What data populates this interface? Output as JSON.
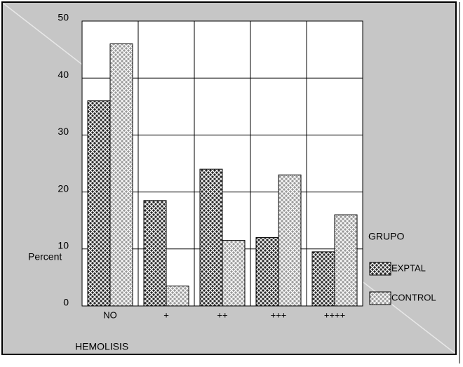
{
  "chart_data": {
    "type": "bar",
    "categories": [
      "NO",
      "+",
      "++",
      "+++",
      "++++"
    ],
    "series": [
      {
        "name": "EXPTAL",
        "color": "#2a2a2a",
        "values": [
          36,
          18.5,
          24,
          12,
          9.5
        ]
      },
      {
        "name": "CONTROL",
        "color": "#9a9a9a",
        "values": [
          46,
          3.5,
          11.5,
          23,
          16
        ]
      }
    ],
    "ylim": [
      0,
      50
    ],
    "yticks": [
      0,
      10,
      20,
      30,
      40,
      50
    ],
    "grid": true,
    "y_label": "Percent",
    "x_label": "HEMOLISIS",
    "legend_title": "GRUPO",
    "legend": "right"
  }
}
